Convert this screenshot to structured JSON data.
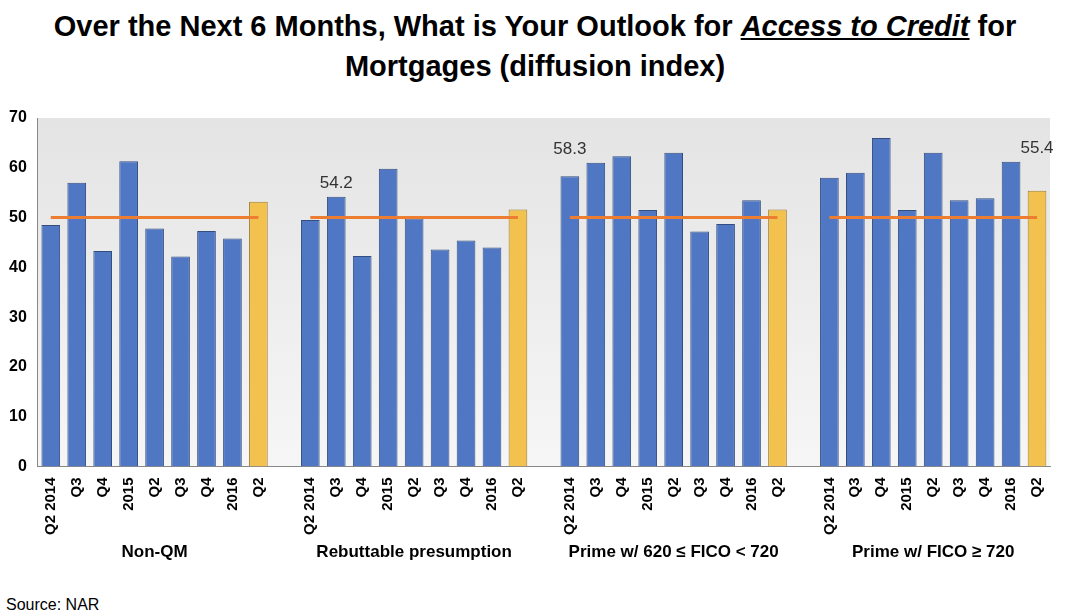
{
  "chart_data": {
    "type": "bar",
    "title": "Over the Next 6 Months, What is Your Outlook for Access to Credit for Mortgages (diffusion index)",
    "title_emphasis": "Access to Credit",
    "source": "Source: NAR",
    "categories": [
      "Q2 2014",
      "Q3",
      "Q4",
      "2015",
      "Q2",
      "Q3",
      "Q4",
      "2016",
      "Q2"
    ],
    "groups": [
      {
        "name": "Non-QM",
        "values": [
          48.5,
          57,
          43.3,
          61.3,
          47.8,
          42.2,
          47.3,
          45.8,
          53.2
        ],
        "colors": [
          "#4f77c4",
          "#4f77c4",
          "#4f77c4",
          "#4f77c4",
          "#4f77c4",
          "#4f77c4",
          "#4f77c4",
          "#4f77c4",
          "#f2c14e"
        ]
      },
      {
        "name": "Rebuttable presumption",
        "values": [
          49.5,
          54.2,
          42.3,
          59.8,
          49.8,
          43.6,
          45.4,
          44,
          51.6
        ],
        "value_labels": [
          null,
          "54.2",
          null,
          null,
          null,
          null,
          null,
          null,
          null
        ],
        "colors": [
          "#4f77c4",
          "#4f77c4",
          "#4f77c4",
          "#4f77c4",
          "#4f77c4",
          "#4f77c4",
          "#4f77c4",
          "#4f77c4",
          "#f2c14e"
        ]
      },
      {
        "name": "Prime w/ 620 ≤ FICO < 720",
        "values": [
          58.3,
          61,
          62.3,
          51.5,
          63,
          47.2,
          48.7,
          53.5,
          51.6
        ],
        "value_labels": [
          "58.3",
          null,
          null,
          null,
          null,
          null,
          null,
          null,
          null
        ],
        "colors": [
          "#4f77c4",
          "#4f77c4",
          "#4f77c4",
          "#4f77c4",
          "#4f77c4",
          "#4f77c4",
          "#4f77c4",
          "#4f77c4",
          "#f2c14e"
        ]
      },
      {
        "name": "Prime w/ FICO ≥ 720",
        "values": [
          58,
          59,
          66,
          51.5,
          63,
          53.5,
          53.9,
          61.2,
          55.4
        ],
        "value_labels": [
          null,
          null,
          null,
          null,
          null,
          null,
          null,
          null,
          "55.4"
        ],
        "colors": [
          "#4f77c4",
          "#4f77c4",
          "#4f77c4",
          "#4f77c4",
          "#4f77c4",
          "#4f77c4",
          "#4f77c4",
          "#4f77c4",
          "#f2c14e"
        ]
      }
    ],
    "reference_value": 50,
    "ylim": [
      0,
      70
    ],
    "yticks": [
      0,
      10,
      20,
      30,
      40,
      50,
      60,
      70
    ],
    "grid": false
  }
}
